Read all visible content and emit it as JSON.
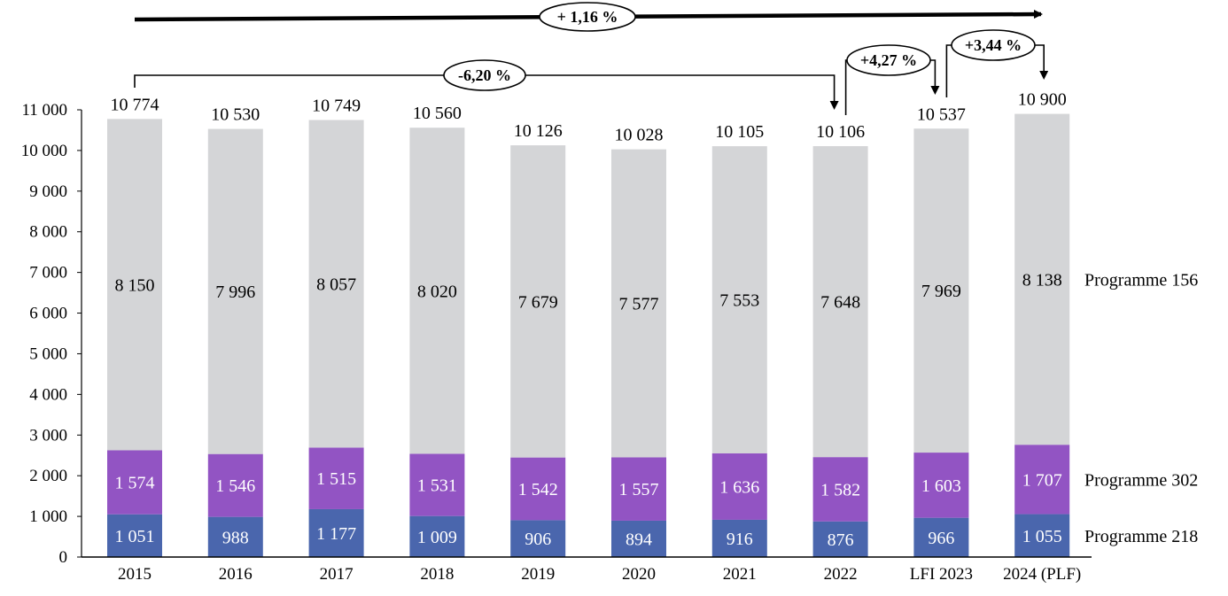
{
  "chart_data": {
    "type": "bar",
    "stacked": true,
    "title": "",
    "xlabel": "",
    "ylabel": "",
    "ylim": [
      0,
      11000
    ],
    "yticks": [
      0,
      1000,
      2000,
      3000,
      4000,
      5000,
      6000,
      7000,
      8000,
      9000,
      10000,
      11000
    ],
    "ytick_labels": [
      "0",
      "1 000",
      "2 000",
      "3 000",
      "4 000",
      "5 000",
      "6 000",
      "7 000",
      "8 000",
      "9 000",
      "10 000",
      "11 000"
    ],
    "categories": [
      "2015",
      "2016",
      "2017",
      "2018",
      "2019",
      "2020",
      "2021",
      "2022",
      "LFI 2023",
      "2024 (PLF)"
    ],
    "series": [
      {
        "name": "Programme 218",
        "color": "#4a66ad",
        "values": [
          1051,
          988,
          1177,
          1009,
          906,
          894,
          916,
          876,
          966,
          1055
        ],
        "labels": [
          "1 051",
          "988",
          "1 177",
          "1 009",
          "906",
          "894",
          "916",
          "876",
          "966",
          "1 055"
        ]
      },
      {
        "name": "Programme 302",
        "color": "#9254c3",
        "values": [
          1574,
          1546,
          1515,
          1531,
          1542,
          1557,
          1636,
          1582,
          1603,
          1707
        ],
        "labels": [
          "1 574",
          "1 546",
          "1 515",
          "1 531",
          "1 542",
          "1 557",
          "1 636",
          "1 582",
          "1 603",
          "1 707"
        ]
      },
      {
        "name": "Programme 156",
        "color": "#d4d5d7",
        "values": [
          8150,
          7996,
          8057,
          8020,
          7679,
          7577,
          7553,
          7648,
          7969,
          8138
        ],
        "labels": [
          "8 150",
          "7 996",
          "8 057",
          "8 020",
          "7 679",
          "7 577",
          "7 553",
          "7 648",
          "7 969",
          "8 138"
        ]
      }
    ],
    "totals": [
      10774,
      10530,
      10749,
      10560,
      10126,
      10028,
      10105,
      10106,
      10537,
      10900
    ],
    "total_labels": [
      "10 774",
      "10 530",
      "10 749",
      "10 560",
      "10 126",
      "10 028",
      "10 105",
      "10 106",
      "10 537",
      "10 900"
    ],
    "legend_placement": "right",
    "annotations": [
      {
        "text": "+ 1,16 %",
        "from": "2015",
        "to": "2024 (PLF)"
      },
      {
        "text": "-6,20 %",
        "from": "2015",
        "to": "2022"
      },
      {
        "text": "+4,27 %",
        "from": "2022",
        "to": "LFI 2023"
      },
      {
        "text": "+3,44 %",
        "from": "LFI 2023",
        "to": "2024 (PLF)"
      }
    ],
    "grid": false
  }
}
